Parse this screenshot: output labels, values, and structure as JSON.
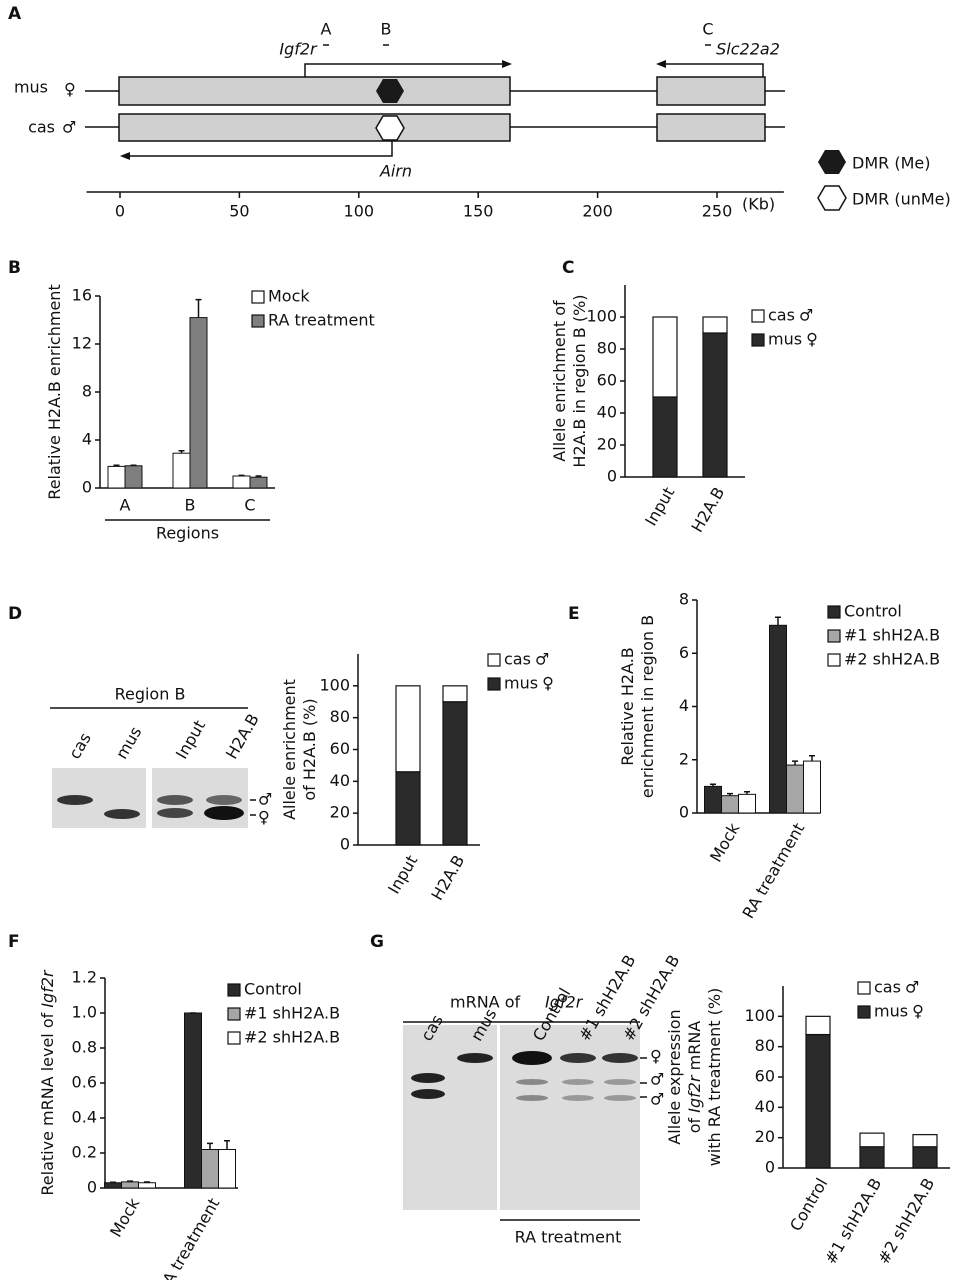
{
  "panel_labels": [
    "A",
    "B",
    "C",
    "D",
    "E",
    "F",
    "G"
  ],
  "diagram": {
    "regions": [
      "A",
      "B",
      "C"
    ],
    "genes": [
      "Igf2r",
      "Slc22a2",
      "Airn"
    ],
    "alleles": [
      {
        "name": "mus",
        "symbol": "♀"
      },
      {
        "name": "cas",
        "symbol": "♂"
      }
    ],
    "legend": [
      "DMR (Me)",
      "DMR (unMe)"
    ],
    "xlim": [
      -14,
      278
    ],
    "xticks": [
      0,
      50,
      100,
      150,
      200,
      250
    ],
    "unit": "(Kb)"
  },
  "gels": {
    "d": {
      "title": "Region B",
      "lanes": [
        "cas",
        "mus",
        "Input",
        "H2A.B"
      ],
      "symbols": [
        "♂",
        "♀"
      ]
    },
    "g": {
      "title": "mRNA of ",
      "title_gene": "Igf2r",
      "lanes": [
        "cas",
        "mus",
        "Control",
        "#1 shH2A.B",
        "#2 shH2A.B"
      ],
      "group": "RA treatment",
      "symbols": [
        "♀",
        "♂",
        "♂"
      ]
    }
  },
  "chart_data": [
    {
      "type": "bar",
      "ylabel": [
        "Relative H2A.B enrichment"
      ],
      "xlabel": "Regions",
      "categories": [
        "A",
        "B",
        "C"
      ],
      "series": [
        {
          "name": "Mock",
          "color": "#ffffff",
          "values": [
            1.8,
            2.9,
            1.0
          ],
          "errors": [
            0.1,
            0.2,
            0.05
          ]
        },
        {
          "name": "RA treatment",
          "color": "#7f7f7f",
          "values": [
            1.85,
            14.2,
            0.9
          ],
          "errors": [
            0.05,
            1.5,
            0.1
          ]
        }
      ],
      "ylim": [
        0,
        16
      ],
      "yticks": [
        0,
        4,
        8,
        12,
        16
      ]
    },
    {
      "type": "stacked_bar",
      "ylabel": [
        "Allele enrichment of",
        "H2A.B  in region  B (%)"
      ],
      "categories": [
        "Input",
        "H2A.B"
      ],
      "series": [
        {
          "name": "cas",
          "symbol": "♂",
          "color": "#ffffff",
          "values": [
            50,
            10
          ]
        },
        {
          "name": "mus",
          "symbol": "♀",
          "color": "#2b2b2b",
          "values": [
            50,
            90
          ]
        }
      ],
      "ylim": [
        0,
        120
      ],
      "yticks": [
        0,
        20,
        40,
        60,
        80,
        100
      ]
    },
    {
      "type": "stacked_bar",
      "ylabel": [
        "Allele enrichment",
        "of H2A.B (%)"
      ],
      "categories": [
        "Input",
        "H2A.B"
      ],
      "series": [
        {
          "name": "cas",
          "symbol": "♂",
          "color": "#ffffff",
          "values": [
            54,
            10
          ]
        },
        {
          "name": "mus",
          "symbol": "♀",
          "color": "#2b2b2b",
          "values": [
            46,
            90
          ]
        }
      ],
      "ylim": [
        0,
        120
      ],
      "yticks": [
        0,
        20,
        40,
        60,
        80,
        100
      ]
    },
    {
      "type": "bar",
      "ylabel": [
        "Relative H2A.B",
        "enrichment in region B"
      ],
      "categories": [
        "Mock",
        "RA treatment"
      ],
      "series": [
        {
          "name": "Control",
          "color": "#2b2b2b",
          "values": [
            1.0,
            7.05
          ],
          "errors": [
            0.08,
            0.3
          ]
        },
        {
          "name": "#1 shH2A.B",
          "color": "#a6a6a6",
          "values": [
            0.65,
            1.8
          ],
          "errors": [
            0.08,
            0.15
          ]
        },
        {
          "name": "#2 shH2A.B",
          "color": "#ffffff",
          "values": [
            0.7,
            1.95
          ],
          "errors": [
            0.1,
            0.2
          ]
        }
      ],
      "ylim": [
        0,
        8
      ],
      "yticks": [
        0,
        2,
        4,
        6,
        8
      ]
    },
    {
      "type": "bar",
      "ylabel": [
        "Relative mRNA level of "
      ],
      "ylabel_gene": "Igf2r",
      "categories": [
        "Mock",
        "RA treatment"
      ],
      "series": [
        {
          "name": "Control",
          "color": "#2b2b2b",
          "values": [
            0.03,
            1.0
          ],
          "errors": [
            0.003,
            0
          ]
        },
        {
          "name": "#1 shH2A.B",
          "color": "#a6a6a6",
          "values": [
            0.035,
            0.22
          ],
          "errors": [
            0.004,
            0.035
          ]
        },
        {
          "name": "#2 shH2A.B",
          "color": "#ffffff",
          "values": [
            0.03,
            0.22
          ],
          "errors": [
            0.004,
            0.05
          ]
        }
      ],
      "ylim": [
        0,
        1.2
      ],
      "yticks": [
        0,
        0.2,
        0.4,
        0.6,
        0.8,
        {
          "value": 1,
          "label": "1.0"
        },
        1.2
      ]
    },
    {
      "type": "stacked_bar",
      "ylabel": [
        "Allele expression",
        "of ",
        "with RA treatment (%)"
      ],
      "ylabel_gene": "Igf2r",
      "ylabel_tail": " mRNA",
      "categories": [
        "Control",
        "#1 shH2A.B",
        "#2 shH2A.B"
      ],
      "series": [
        {
          "name": "cas",
          "symbol": "♂",
          "color": "#ffffff",
          "values": [
            12,
            9,
            8
          ]
        },
        {
          "name": "mus",
          "symbol": "♀",
          "color": "#2b2b2b",
          "values": [
            88,
            14,
            14
          ]
        }
      ],
      "ylim": [
        0,
        120
      ],
      "yticks": [
        0,
        20,
        40,
        60,
        80,
        100
      ]
    }
  ]
}
